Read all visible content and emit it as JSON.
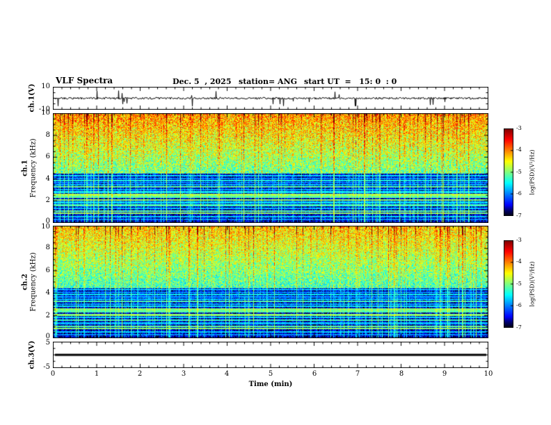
{
  "header": {
    "title": "VLF Spectra",
    "date": "Dec. 5  , 2025",
    "station": "station= ANG",
    "start_ut": "start UT  =   15: 0  : 0"
  },
  "xaxis": {
    "label": "Time (min)",
    "range": [
      0,
      10
    ],
    "ticks": [
      "0",
      "1",
      "2",
      "3",
      "4",
      "5",
      "6",
      "7",
      "8",
      "9",
      "10"
    ]
  },
  "panels": {
    "ch1_wave": {
      "ylabel": "ch.1(V)",
      "yticks": [
        "10",
        "-10"
      ],
      "ylim": [
        -10,
        10
      ]
    },
    "ch1_spec": {
      "channel": "ch.1",
      "ylabel": "Frequency (kHz)",
      "yticks": [
        "10",
        "8",
        "6",
        "4",
        "2",
        "0"
      ],
      "ylim": [
        0,
        10
      ]
    },
    "ch2_spec": {
      "channel": "ch.2",
      "ylabel": "Frequency (kHz)",
      "yticks": [
        "10",
        "8",
        "6",
        "4",
        "2",
        "0"
      ],
      "ylim": [
        0,
        10
      ]
    },
    "ch3_wave": {
      "ylabel": "ch.3(V)",
      "yticks": [
        "5",
        "-5"
      ],
      "ylim": [
        -5,
        5
      ]
    }
  },
  "colorbar": {
    "label": "log(PSD)(V²/Hz)",
    "ticks": [
      "-3",
      "-4",
      "-5",
      "-6",
      "-7"
    ],
    "range": [
      -7,
      -3
    ]
  },
  "chart_data": [
    {
      "type": "line",
      "name": "ch1_waveform",
      "ylabel": "ch.1(V)",
      "ylim": [
        -10,
        10
      ],
      "xlim": [
        0,
        10
      ],
      "description": "Broadband noise trace centered near 0 V, amplitude about ±1 V, with frequent short negative spikes reaching about -8 V throughout the 10 minutes",
      "render": {
        "seed": 1101,
        "noise_amp": 1.4,
        "spike_prob": 0.05,
        "spike_min": 4,
        "spike_max": 12,
        "down_prob": 0.8
      }
    },
    {
      "type": "heatmap",
      "name": "ch1_spectrogram",
      "channel": "ch.1",
      "xlabel": "Time (min)",
      "ylabel": "Frequency (kHz)",
      "zlabel": "log(PSD)(V²/Hz)",
      "xlim": [
        0,
        10
      ],
      "ylim": [
        0,
        10
      ],
      "zlim": [
        -7,
        -3
      ],
      "description": "Strong broadband hiss above ~4.5 kHz (log PSD -5 to -3.5, green/yellow with red patches near 10 kHz), dark background below 4.5 kHz (~ -7) crossed by narrowband horizontal emission lines and dense vertical sferic streaks",
      "render": {
        "seed": 20251205,
        "split_khz": 4.5,
        "upper_base": -5.15,
        "upper_slope": 0.18,
        "upper_noise": 0.65,
        "lower_base": -6.7,
        "lower_noise": 0.45,
        "streak_prob": 0.2,
        "streak_gain": 1.9,
        "bands": [
          [
            4.35,
            -5.7
          ],
          [
            4.1,
            -6.0
          ],
          [
            3.9,
            -5.5
          ],
          [
            3.7,
            -6.0
          ],
          [
            3.5,
            -5.8
          ],
          [
            3.3,
            -5.2
          ],
          [
            3.05,
            -5.9
          ],
          [
            2.85,
            -5.6
          ],
          [
            2.6,
            -4.9
          ],
          [
            2.4,
            -5.2
          ],
          [
            2.1,
            -5.0
          ],
          [
            1.9,
            -5.7
          ],
          [
            1.65,
            -5.3
          ],
          [
            1.35,
            -5.8
          ],
          [
            1.1,
            -5.2
          ],
          [
            0.9,
            -5.0
          ],
          [
            0.6,
            -5.7
          ],
          [
            0.35,
            -6.0
          ]
        ]
      }
    },
    {
      "type": "heatmap",
      "name": "ch2_spectrogram",
      "channel": "ch.2",
      "xlabel": "Time (min)",
      "ylabel": "Frequency (kHz)",
      "zlabel": "log(PSD)(V²/Hz)",
      "xlim": [
        0,
        10
      ],
      "ylim": [
        0,
        10
      ],
      "zlim": [
        -7,
        -3
      ],
      "description": "Similar to ch.1 but slightly dimmer hiss band above ~4.5 kHz (more green/cyan), dark low-frequency region with the same horizontal narrowband lines and vertical sferic streaks",
      "render": {
        "seed": 987654,
        "split_khz": 4.5,
        "upper_base": -5.3,
        "upper_slope": 0.17,
        "upper_noise": 0.6,
        "lower_base": -6.72,
        "lower_noise": 0.45,
        "streak_prob": 0.22,
        "streak_gain": 1.9,
        "bands": [
          [
            4.35,
            -5.8
          ],
          [
            4.1,
            -6.0
          ],
          [
            3.9,
            -5.6
          ],
          [
            3.7,
            -6.0
          ],
          [
            3.5,
            -5.8
          ],
          [
            3.3,
            -5.3
          ],
          [
            3.05,
            -5.9
          ],
          [
            2.85,
            -5.6
          ],
          [
            2.6,
            -5.0
          ],
          [
            2.4,
            -5.2
          ],
          [
            2.1,
            -5.0
          ],
          [
            1.9,
            -5.7
          ],
          [
            1.65,
            -5.3
          ],
          [
            1.35,
            -5.8
          ],
          [
            1.1,
            -5.2
          ],
          [
            0.9,
            -5.0
          ],
          [
            0.6,
            -5.7
          ],
          [
            0.35,
            -6.0
          ]
        ]
      }
    },
    {
      "type": "line",
      "name": "ch3_waveform",
      "ylabel": "ch.3(V)",
      "ylim": [
        -5,
        5
      ],
      "xlim": [
        0,
        10
      ],
      "description": "Flat thick line at 0 V for the whole interval (channel inactive)",
      "render": {
        "flat_value": 0,
        "line_width": 3
      }
    }
  ]
}
